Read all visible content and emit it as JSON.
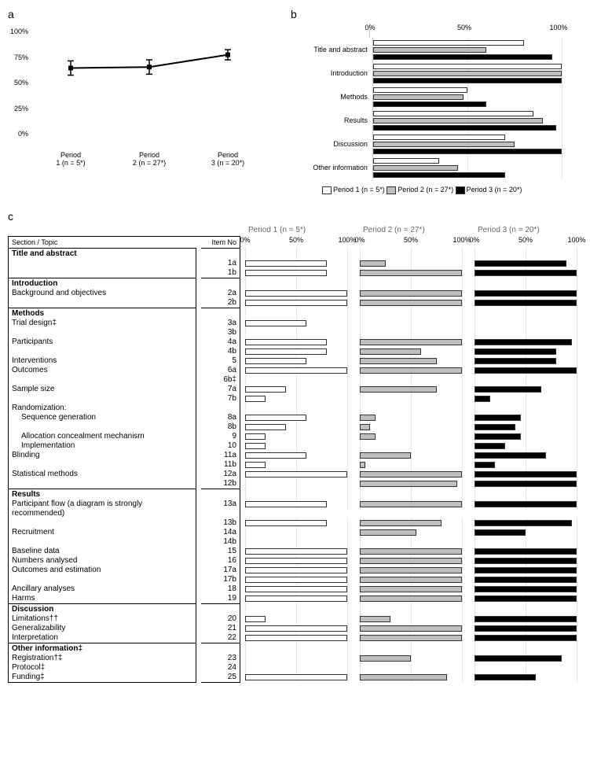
{
  "panel_a": {
    "label": "a",
    "y_ticks": [
      0,
      25,
      50,
      75,
      100
    ],
    "y_tick_labels": [
      "0%",
      "25%",
      "50%",
      "75%",
      "100%"
    ],
    "x_labels": [
      "Period\n1 (n = 5*)",
      "Period\n2 (n = 27*)",
      "Period\n3 (n = 20*)"
    ],
    "points": [
      {
        "x": 0,
        "y": 65,
        "err": 7
      },
      {
        "x": 1,
        "y": 66,
        "err": 7
      },
      {
        "x": 2,
        "y": 78,
        "err": 5
      }
    ],
    "line_color": "#000000",
    "marker": "square"
  },
  "panel_b": {
    "label": "b",
    "x_ticks": [
      0,
      50,
      100
    ],
    "x_tick_labels": [
      "0%",
      "50%",
      "100%"
    ],
    "categories": [
      "Title and abstract",
      "Introduction",
      "Methods",
      "Results",
      "Discussion",
      "Other information"
    ],
    "series_labels": [
      "Period 1 (n = 5*)",
      "Period 2 (n = 27*)",
      "Period 3 (n = 20*)"
    ],
    "series_colors": [
      "#ffffff",
      "#bfbfbf",
      "#000000"
    ],
    "values": {
      "Title and abstract": [
        80,
        60,
        95
      ],
      "Introduction": [
        100,
        100,
        100
      ],
      "Methods": [
        50,
        48,
        60
      ],
      "Results": [
        85,
        90,
        97
      ],
      "Discussion": [
        70,
        75,
        100
      ],
      "Other information": [
        35,
        45,
        70
      ]
    }
  },
  "panel_c": {
    "label": "c",
    "period_headers": [
      "Period 1 (n = 5*)",
      "Period 2 (n = 27*)",
      "Period 3 (n = 20*)"
    ],
    "series_colors": [
      "#ffffff",
      "#bfbfbf",
      "#000000"
    ],
    "table_headers": [
      "Section / Topic",
      "Item No"
    ],
    "x_ticks": [
      0,
      50,
      100
    ],
    "x_tick_labels": [
      "0%",
      "50%",
      "100%"
    ],
    "sections": [
      {
        "name": "Title and abstract",
        "rows": [
          {
            "topic": "",
            "item": "1a",
            "vals": [
              80,
              25,
              90
            ]
          },
          {
            "topic": "",
            "item": "1b",
            "vals": [
              80,
              100,
              100
            ]
          }
        ]
      },
      {
        "name": "Introduction",
        "rows": [
          {
            "topic": "Background and objectives",
            "item": "2a",
            "vals": [
              100,
              100,
              100
            ]
          },
          {
            "topic": "",
            "item": "2b",
            "vals": [
              100,
              100,
              100
            ]
          }
        ]
      },
      {
        "name": "Methods",
        "rows": [
          {
            "topic": "Trial design‡",
            "item": "3a",
            "vals": [
              60,
              0,
              0
            ]
          },
          {
            "topic": "",
            "item": "3b",
            "vals": [
              0,
              0,
              0
            ]
          },
          {
            "topic": "Participants",
            "item": "4a",
            "vals": [
              80,
              100,
              95
            ]
          },
          {
            "topic": "",
            "item": "4b",
            "vals": [
              80,
              60,
              80
            ]
          },
          {
            "topic": "Interventions",
            "item": "5",
            "vals": [
              60,
              75,
              80
            ]
          },
          {
            "topic": "Outcomes",
            "item": "6a",
            "vals": [
              100,
              100,
              100
            ]
          },
          {
            "topic": "",
            "item": "6b‡",
            "vals": [
              0,
              0,
              0
            ]
          },
          {
            "topic": "Sample size",
            "item": "7a",
            "vals": [
              40,
              75,
              65
            ]
          },
          {
            "topic": "",
            "item": "7b",
            "vals": [
              20,
              0,
              15
            ]
          },
          {
            "topic": "Randomization:",
            "item": "",
            "vals": null
          },
          {
            "topic": "Sequence generation",
            "indent": true,
            "item": "8a",
            "vals": [
              60,
              15,
              45
            ]
          },
          {
            "topic": "",
            "item": "8b",
            "vals": [
              40,
              10,
              40
            ]
          },
          {
            "topic": "Allocation concealment mechanism",
            "indent": true,
            "item": "9",
            "vals": [
              20,
              15,
              45
            ]
          },
          {
            "topic": "Implementation",
            "indent": true,
            "item": "10",
            "vals": [
              20,
              0,
              30
            ]
          },
          {
            "topic": "Blinding",
            "item": "11a",
            "vals": [
              60,
              50,
              70
            ]
          },
          {
            "topic": "",
            "item": "11b",
            "vals": [
              20,
              5,
              20
            ]
          },
          {
            "topic": "Statistical methods",
            "item": "12a",
            "vals": [
              100,
              100,
              100
            ]
          },
          {
            "topic": "",
            "item": "12b",
            "vals": [
              0,
              95,
              100
            ]
          }
        ]
      },
      {
        "name": "Results",
        "rows": [
          {
            "topic": "Participant flow (a diagram is strongly recommended)",
            "item": "13a",
            "vals": [
              80,
              100,
              100
            ],
            "tall": true
          },
          {
            "topic": "",
            "item": "13b",
            "vals": [
              80,
              80,
              95
            ]
          },
          {
            "topic": "Recruitment",
            "item": "14a",
            "vals": [
              0,
              55,
              50
            ]
          },
          {
            "topic": "",
            "item": "14b",
            "vals": [
              0,
              0,
              0
            ]
          },
          {
            "topic": "Baseline data",
            "item": "15",
            "vals": [
              100,
              100,
              100
            ]
          },
          {
            "topic": "Numbers analysed",
            "item": "16",
            "vals": [
              100,
              100,
              100
            ]
          },
          {
            "topic": "Outcomes and estimation",
            "item": "17a",
            "vals": [
              100,
              100,
              100
            ]
          },
          {
            "topic": "",
            "item": "17b",
            "vals": [
              100,
              100,
              100
            ]
          },
          {
            "topic": "Ancillary analyses",
            "item": "18",
            "vals": [
              100,
              100,
              100
            ]
          },
          {
            "topic": "Harms",
            "item": "19",
            "vals": [
              100,
              100,
              100
            ]
          }
        ]
      },
      {
        "name": "Discussion",
        "rows": [
          {
            "topic": "Limitations††",
            "item": "20",
            "vals": [
              20,
              30,
              100
            ]
          },
          {
            "topic": "Generalizability",
            "item": "21",
            "vals": [
              100,
              100,
              100
            ]
          },
          {
            "topic": "Interpretation",
            "item": "22",
            "vals": [
              100,
              100,
              100
            ]
          }
        ]
      },
      {
        "name": "Other information‡",
        "rows": [
          {
            "topic": "Registration†‡",
            "item": "23",
            "vals": [
              0,
              50,
              85
            ]
          },
          {
            "topic": "Protocol‡",
            "item": "24",
            "vals": [
              0,
              0,
              0
            ]
          },
          {
            "topic": "Funding‡",
            "item": "25",
            "vals": [
              100,
              85,
              60
            ]
          }
        ]
      }
    ]
  }
}
